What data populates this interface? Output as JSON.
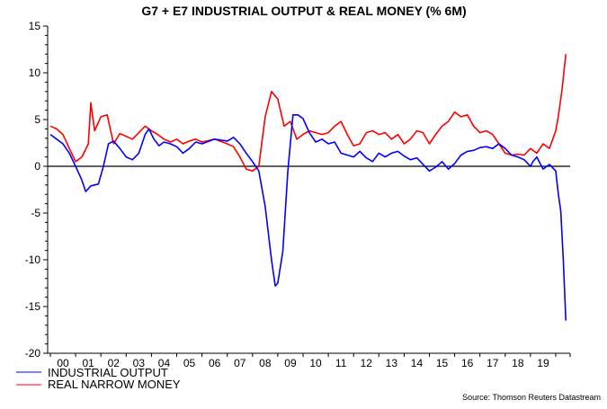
{
  "chart_data": {
    "type": "line",
    "title": "G7 + E7 INDUSTRIAL OUTPUT & REAL MONEY (% 6M)",
    "xlabel": "",
    "ylabel": "",
    "ylim": [
      -20,
      15
    ],
    "xlim": [
      2000,
      2020.5
    ],
    "yticks": [
      15,
      10,
      5,
      0,
      -5,
      -10,
      -15,
      -20
    ],
    "xtick_labels": [
      "00",
      "01",
      "02",
      "03",
      "04",
      "05",
      "06",
      "07",
      "08",
      "09",
      "10",
      "11",
      "12",
      "13",
      "14",
      "15",
      "16",
      "17",
      "18",
      "19"
    ],
    "zero_line": true,
    "grid": false,
    "legend_position": "bottom-left",
    "source": "Source: Thomson Reuters Datastream",
    "series": [
      {
        "name": "INDUSTRIAL OUTPUT",
        "color": "#0000ff",
        "x": [
          2000.0,
          2000.25,
          2000.5,
          2000.75,
          2001.0,
          2001.25,
          2001.4,
          2001.6,
          2001.9,
          2002.1,
          2002.3,
          2002.5,
          2002.75,
          2003.0,
          2003.25,
          2003.5,
          2003.75,
          2003.9,
          2004.1,
          2004.3,
          2004.5,
          2004.75,
          2005.0,
          2005.25,
          2005.5,
          2005.75,
          2006.0,
          2006.5,
          2007.0,
          2007.25,
          2007.5,
          2007.75,
          2008.0,
          2008.25,
          2008.5,
          2008.75,
          2008.9,
          2009.0,
          2009.2,
          2009.4,
          2009.6,
          2009.8,
          2010.0,
          2010.25,
          2010.5,
          2010.75,
          2011.0,
          2011.25,
          2011.5,
          2011.75,
          2012.0,
          2012.25,
          2012.5,
          2012.75,
          2013.0,
          2013.25,
          2013.5,
          2013.75,
          2014.0,
          2014.25,
          2014.5,
          2014.75,
          2015.0,
          2015.25,
          2015.5,
          2015.75,
          2016.0,
          2016.25,
          2016.5,
          2016.75,
          2017.0,
          2017.25,
          2017.5,
          2017.75,
          2018.0,
          2018.25,
          2018.5,
          2018.75,
          2019.0,
          2019.1,
          2019.25,
          2019.5,
          2019.75,
          2020.0,
          2020.1,
          2020.2,
          2020.3,
          2020.4
        ],
        "values": [
          3.4,
          2.9,
          2.4,
          1.4,
          0.0,
          -1.5,
          -2.7,
          -2.1,
          -1.9,
          0.0,
          2.4,
          2.7,
          1.9,
          1.0,
          0.7,
          1.4,
          3.4,
          4.0,
          2.9,
          2.2,
          2.6,
          2.4,
          2.1,
          1.4,
          1.9,
          2.6,
          2.4,
          2.9,
          2.7,
          3.1,
          2.4,
          1.4,
          0.5,
          -0.5,
          -4.3,
          -10.0,
          -12.8,
          -12.5,
          -9.1,
          -0.5,
          5.5,
          5.5,
          5.1,
          3.6,
          2.6,
          2.9,
          2.4,
          2.6,
          1.4,
          1.2,
          1.0,
          1.6,
          0.9,
          0.5,
          1.4,
          1.0,
          1.4,
          1.6,
          1.1,
          0.7,
          0.9,
          0.2,
          -0.5,
          -0.1,
          0.5,
          -0.3,
          0.3,
          1.2,
          1.6,
          1.7,
          2.0,
          2.1,
          1.9,
          2.4,
          1.9,
          1.2,
          1.0,
          0.7,
          0.0,
          0.5,
          1.0,
          -0.3,
          0.2,
          -0.5,
          -2.9,
          -4.8,
          -10.0,
          -16.5
        ]
      },
      {
        "name": "REAL NARROW MONEY",
        "color": "#ff0000",
        "x": [
          2000.0,
          2000.25,
          2000.5,
          2000.75,
          2001.0,
          2001.25,
          2001.5,
          2001.6,
          2001.75,
          2002.0,
          2002.25,
          2002.5,
          2002.75,
          2003.0,
          2003.25,
          2003.5,
          2003.75,
          2004.0,
          2004.25,
          2004.5,
          2004.75,
          2005.0,
          2005.25,
          2005.5,
          2005.75,
          2006.0,
          2006.5,
          2007.0,
          2007.25,
          2007.5,
          2007.75,
          2008.0,
          2008.25,
          2008.5,
          2008.75,
          2009.0,
          2009.25,
          2009.5,
          2009.75,
          2010.0,
          2010.25,
          2010.5,
          2010.75,
          2011.0,
          2011.25,
          2011.5,
          2011.75,
          2012.0,
          2012.25,
          2012.5,
          2012.75,
          2013.0,
          2013.25,
          2013.5,
          2013.75,
          2014.0,
          2014.25,
          2014.5,
          2014.75,
          2015.0,
          2015.25,
          2015.5,
          2015.75,
          2016.0,
          2016.25,
          2016.5,
          2016.75,
          2017.0,
          2017.25,
          2017.5,
          2017.75,
          2018.0,
          2018.25,
          2018.5,
          2018.75,
          2019.0,
          2019.25,
          2019.5,
          2019.75,
          2020.0,
          2020.1,
          2020.25,
          2020.4
        ],
        "values": [
          4.3,
          4.0,
          3.4,
          1.9,
          0.5,
          1.0,
          2.4,
          6.8,
          3.8,
          5.3,
          5.5,
          2.4,
          3.5,
          3.2,
          2.9,
          3.6,
          4.3,
          3.8,
          3.4,
          2.9,
          2.6,
          2.9,
          2.4,
          2.7,
          2.9,
          2.6,
          2.9,
          2.4,
          2.1,
          1.0,
          -0.3,
          -0.5,
          0.0,
          5.3,
          8.0,
          7.2,
          4.3,
          4.8,
          2.9,
          3.4,
          3.8,
          3.6,
          3.4,
          3.6,
          4.3,
          4.8,
          3.4,
          2.2,
          2.4,
          3.6,
          3.8,
          3.4,
          3.6,
          2.9,
          3.4,
          2.4,
          2.9,
          3.8,
          3.6,
          2.4,
          3.4,
          4.3,
          4.8,
          5.8,
          5.3,
          5.5,
          4.3,
          3.6,
          3.8,
          3.4,
          2.4,
          1.4,
          1.2,
          1.3,
          1.2,
          1.9,
          1.4,
          2.4,
          1.9,
          3.8,
          5.3,
          8.2,
          12.0
        ]
      }
    ]
  }
}
